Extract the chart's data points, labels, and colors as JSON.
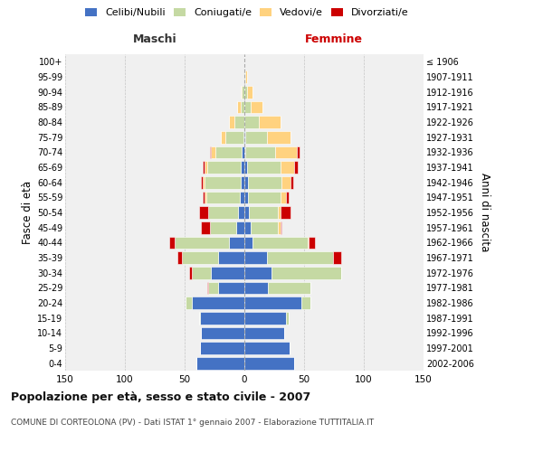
{
  "age_groups": [
    "0-4",
    "5-9",
    "10-14",
    "15-19",
    "20-24",
    "25-29",
    "30-34",
    "35-39",
    "40-44",
    "45-49",
    "50-54",
    "55-59",
    "60-64",
    "65-69",
    "70-74",
    "75-79",
    "80-84",
    "85-89",
    "90-94",
    "95-99",
    "100+"
  ],
  "birth_years": [
    "2002-2006",
    "1997-2001",
    "1992-1996",
    "1987-1991",
    "1982-1986",
    "1977-1981",
    "1972-1976",
    "1967-1971",
    "1962-1966",
    "1957-1961",
    "1952-1956",
    "1947-1951",
    "1942-1946",
    "1937-1941",
    "1932-1936",
    "1927-1931",
    "1922-1926",
    "1917-1921",
    "1912-1916",
    "1907-1911",
    "≤ 1906"
  ],
  "male": {
    "celibi": [
      40,
      37,
      36,
      37,
      44,
      22,
      28,
      22,
      13,
      7,
      5,
      4,
      3,
      3,
      2,
      1,
      0,
      0,
      0,
      0,
      0
    ],
    "coniugati": [
      0,
      0,
      0,
      1,
      5,
      8,
      16,
      30,
      45,
      22,
      25,
      28,
      30,
      28,
      22,
      15,
      8,
      3,
      2,
      0,
      0
    ],
    "vedovi": [
      0,
      0,
      0,
      0,
      0,
      0,
      0,
      0,
      0,
      0,
      0,
      1,
      2,
      2,
      4,
      4,
      5,
      3,
      1,
      0,
      0
    ],
    "divorziati": [
      0,
      0,
      0,
      0,
      0,
      1,
      2,
      4,
      5,
      7,
      8,
      2,
      1,
      2,
      1,
      0,
      0,
      0,
      0,
      0,
      0
    ]
  },
  "female": {
    "nubili": [
      42,
      38,
      33,
      35,
      48,
      20,
      23,
      19,
      7,
      5,
      4,
      3,
      3,
      2,
      1,
      1,
      0,
      0,
      0,
      0,
      0
    ],
    "coniugate": [
      0,
      0,
      0,
      2,
      7,
      35,
      58,
      55,
      46,
      23,
      24,
      27,
      28,
      28,
      25,
      18,
      12,
      5,
      2,
      1,
      0
    ],
    "vedove": [
      0,
      0,
      0,
      0,
      0,
      0,
      0,
      0,
      1,
      2,
      2,
      5,
      8,
      12,
      18,
      20,
      18,
      10,
      5,
      1,
      0
    ],
    "divorziate": [
      0,
      0,
      0,
      0,
      0,
      0,
      0,
      7,
      5,
      1,
      9,
      2,
      2,
      3,
      2,
      0,
      0,
      0,
      0,
      0,
      0
    ]
  },
  "colors": {
    "celibi": "#4472C4",
    "coniugati": "#C5D9A3",
    "vedovi": "#FFD27F",
    "divorziati": "#CC0000"
  },
  "xlim": 150,
  "title": "Popolazione per età, sesso e stato civile - 2007",
  "subtitle": "COMUNE DI CORTEOLONA (PV) - Dati ISTAT 1° gennaio 2007 - Elaborazione TUTTITALIA.IT",
  "ylabel_left": "Fasce di età",
  "ylabel_right": "Anni di nascita",
  "legend_labels": [
    "Celibi/Nubili",
    "Coniugati/e",
    "Vedovi/e",
    "Divorziati/e"
  ],
  "maschi_label": "Maschi",
  "femmine_label": "Femmine",
  "bg_color": "#FFFFFF",
  "plot_bg_color": "#F0F0F0"
}
